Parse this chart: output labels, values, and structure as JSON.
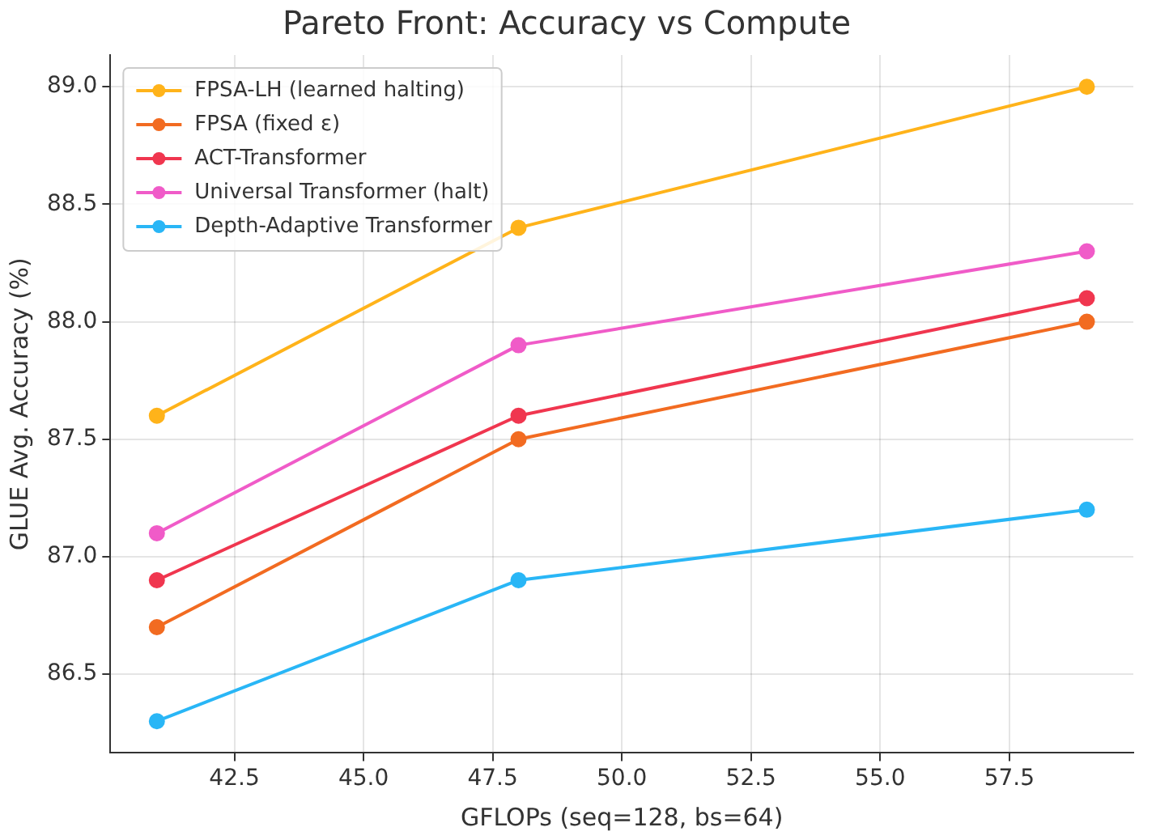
{
  "chart_data": {
    "type": "line",
    "title": "Pareto Front: Accuracy vs Compute",
    "xlabel": "GFLOPs (seq=128, bs=64)",
    "ylabel": "GLUE Avg. Accuracy (%)",
    "x": [
      41,
      48,
      59
    ],
    "series": [
      {
        "name": "FPSA-LH (learned halting)",
        "color": "#ffb31a",
        "values": [
          87.6,
          88.4,
          89.0
        ]
      },
      {
        "name": "FPSA (fixed ε)",
        "color": "#f26b21",
        "values": [
          86.7,
          87.5,
          88.0
        ]
      },
      {
        "name": "ACT-Transformer",
        "color": "#f0364f",
        "values": [
          86.9,
          87.6,
          88.1
        ]
      },
      {
        "name": "Universal Transformer (halt)",
        "color": "#f05bc8",
        "values": [
          87.1,
          87.9,
          88.3
        ]
      },
      {
        "name": "Depth-Adaptive Transformer",
        "color": "#29b6f6",
        "values": [
          86.3,
          86.9,
          87.2
        ]
      }
    ],
    "xlim": [
      40.1,
      59.9
    ],
    "xticks": [
      {
        "value": 42.5,
        "label": "42.5"
      },
      {
        "value": 45,
        "label": "45.0"
      },
      {
        "value": 47.5,
        "label": "47.5"
      },
      {
        "value": 50,
        "label": "50.0"
      },
      {
        "value": 52.5,
        "label": "52.5"
      },
      {
        "value": 55,
        "label": "55.0"
      },
      {
        "value": 57.5,
        "label": "57.5"
      }
    ],
    "ylim": [
      86.165,
      89.135
    ],
    "yticks": [
      {
        "value": 86.5,
        "label": "86.5"
      },
      {
        "value": 87,
        "label": "87.0"
      },
      {
        "value": 87.5,
        "label": "87.5"
      },
      {
        "value": 88,
        "label": "88.0"
      },
      {
        "value": 88.5,
        "label": "88.5"
      },
      {
        "value": 89,
        "label": "89.0"
      }
    ],
    "grid": true,
    "legend": "top left",
    "marker": "circle",
    "line_style": "solid"
  }
}
